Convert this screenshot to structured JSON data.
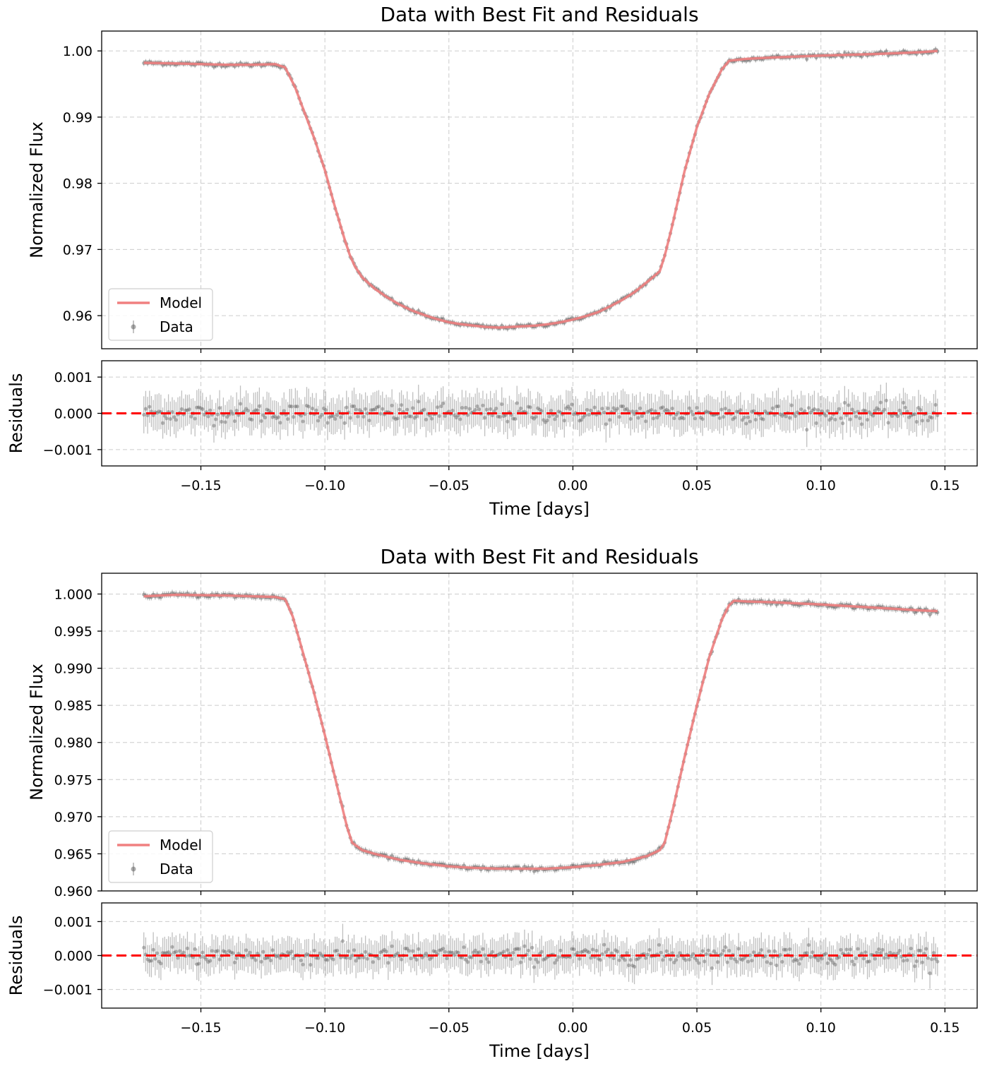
{
  "colors": {
    "model": "#f08080",
    "data": "#555555",
    "errorbar": "#b0b0b0",
    "zero_line": "#ff0000",
    "grid": "#cccccc"
  },
  "chart_data": [
    {
      "type": "line",
      "title": "Data with Best Fit and Residuals",
      "xlabel": "Time [days]",
      "ylabel": "Normalized Flux",
      "residual_ylabel": "Residuals",
      "xlim": [
        -0.19,
        0.163
      ],
      "ylim": [
        0.955,
        1.003
      ],
      "residual_ylim": [
        -0.00145,
        0.00145
      ],
      "xticks": [
        -0.15,
        -0.1,
        -0.05,
        0.0,
        0.05,
        0.1,
        0.15
      ],
      "xtick_labels": [
        "−0.15",
        "−0.10",
        "−0.05",
        "0.00",
        "0.05",
        "0.10",
        "0.15"
      ],
      "yticks": [
        0.96,
        0.97,
        0.98,
        0.99,
        1.0
      ],
      "ytick_labels": [
        "0.96",
        "0.97",
        "0.98",
        "0.99",
        "1.00"
      ],
      "residual_yticks": [
        -0.001,
        0.0,
        0.001
      ],
      "residual_ytick_labels": [
        "−0.001",
        "0.000",
        "0.001"
      ],
      "grid": true,
      "legend": {
        "position": "lower-left",
        "entries": [
          "Model",
          "Data"
        ]
      },
      "series": [
        {
          "name": "Model",
          "x": [
            -0.173,
            -0.16,
            -0.14,
            -0.13,
            -0.12,
            -0.116,
            -0.112,
            -0.108,
            -0.104,
            -0.1,
            -0.096,
            -0.092,
            -0.09,
            -0.088,
            -0.085,
            -0.08,
            -0.075,
            -0.07,
            -0.065,
            -0.06,
            -0.055,
            -0.05,
            -0.045,
            -0.04,
            -0.035,
            -0.03,
            -0.025,
            -0.02,
            -0.015,
            -0.01,
            -0.005,
            0.0,
            0.005,
            0.01,
            0.015,
            0.02,
            0.025,
            0.03,
            0.035,
            0.037,
            0.04,
            0.045,
            0.05,
            0.055,
            0.06,
            0.063,
            0.065,
            0.07,
            0.08,
            0.1,
            0.12,
            0.14,
            0.147
          ],
          "y": [
            0.9982,
            0.9981,
            0.9979,
            0.9979,
            0.998,
            0.9975,
            0.9945,
            0.9905,
            0.9865,
            0.982,
            0.9765,
            0.9715,
            0.9692,
            0.9675,
            0.9658,
            0.9641,
            0.9628,
            0.9617,
            0.9608,
            0.9601,
            0.9595,
            0.959,
            0.9587,
            0.9585,
            0.9583,
            0.9582,
            0.9583,
            0.9584,
            0.9585,
            0.9587,
            0.959,
            0.9594,
            0.9599,
            0.9605,
            0.9614,
            0.9624,
            0.9636,
            0.9651,
            0.9667,
            0.969,
            0.9735,
            0.9818,
            0.9885,
            0.9935,
            0.9972,
            0.9985,
            0.9986,
            0.9988,
            0.999,
            0.9993,
            0.9995,
            0.9998,
            1.0
          ]
        },
        {
          "name": "Data",
          "x_range": [
            -0.173,
            0.147
          ],
          "n_points": 420,
          "errorbar": 0.00045
        }
      ]
    },
    {
      "type": "line",
      "title": "Data with Best Fit and Residuals",
      "xlabel": "Time [days]",
      "ylabel": "Normalized Flux",
      "residual_ylabel": "Residuals",
      "xlim": [
        -0.19,
        0.163
      ],
      "ylim": [
        0.96,
        1.0028
      ],
      "residual_ylim": [
        -0.00155,
        0.00155
      ],
      "xticks": [
        -0.15,
        -0.1,
        -0.05,
        0.0,
        0.05,
        0.1,
        0.15
      ],
      "xtick_labels": [
        "−0.15",
        "−0.10",
        "−0.05",
        "0.00",
        "0.05",
        "0.10",
        "0.15"
      ],
      "yticks": [
        0.96,
        0.965,
        0.97,
        0.975,
        0.98,
        0.985,
        0.99,
        0.995,
        1.0
      ],
      "ytick_labels": [
        "0.960",
        "0.965",
        "0.970",
        "0.975",
        "0.980",
        "0.985",
        "0.990",
        "0.995",
        "1.000"
      ],
      "residual_yticks": [
        -0.001,
        0.0,
        0.001
      ],
      "residual_ytick_labels": [
        "−0.001",
        "0.000",
        "0.001"
      ],
      "grid": true,
      "legend": {
        "position": "lower-left",
        "entries": [
          "Model",
          "Data"
        ]
      },
      "series": [
        {
          "name": "Model",
          "x": [
            -0.173,
            -0.16,
            -0.14,
            -0.12,
            -0.116,
            -0.113,
            -0.11,
            -0.105,
            -0.1,
            -0.095,
            -0.091,
            -0.089,
            -0.087,
            -0.085,
            -0.08,
            -0.07,
            -0.06,
            -0.05,
            -0.04,
            -0.03,
            -0.02,
            -0.01,
            0.0,
            0.01,
            0.02,
            0.03,
            0.035,
            0.037,
            0.04,
            0.045,
            0.05,
            0.055,
            0.06,
            0.063,
            0.065,
            0.07,
            0.08,
            0.1,
            0.12,
            0.14,
            0.147
          ],
          "y": [
            0.9997,
            0.9999,
            0.9998,
            0.9996,
            0.9993,
            0.997,
            0.9935,
            0.9875,
            0.981,
            0.974,
            0.9685,
            0.9665,
            0.966,
            0.9655,
            0.965,
            0.9642,
            0.9637,
            0.9633,
            0.9631,
            0.963,
            0.963,
            0.963,
            0.9632,
            0.9635,
            0.9639,
            0.9647,
            0.9655,
            0.9665,
            0.9705,
            0.978,
            0.985,
            0.9915,
            0.9965,
            0.9985,
            0.9991,
            0.999,
            0.9989,
            0.9986,
            0.9982,
            0.9978,
            0.9977
          ]
        },
        {
          "name": "Data",
          "x_range": [
            -0.173,
            0.147
          ],
          "n_points": 420,
          "errorbar": 0.00045
        }
      ]
    }
  ]
}
